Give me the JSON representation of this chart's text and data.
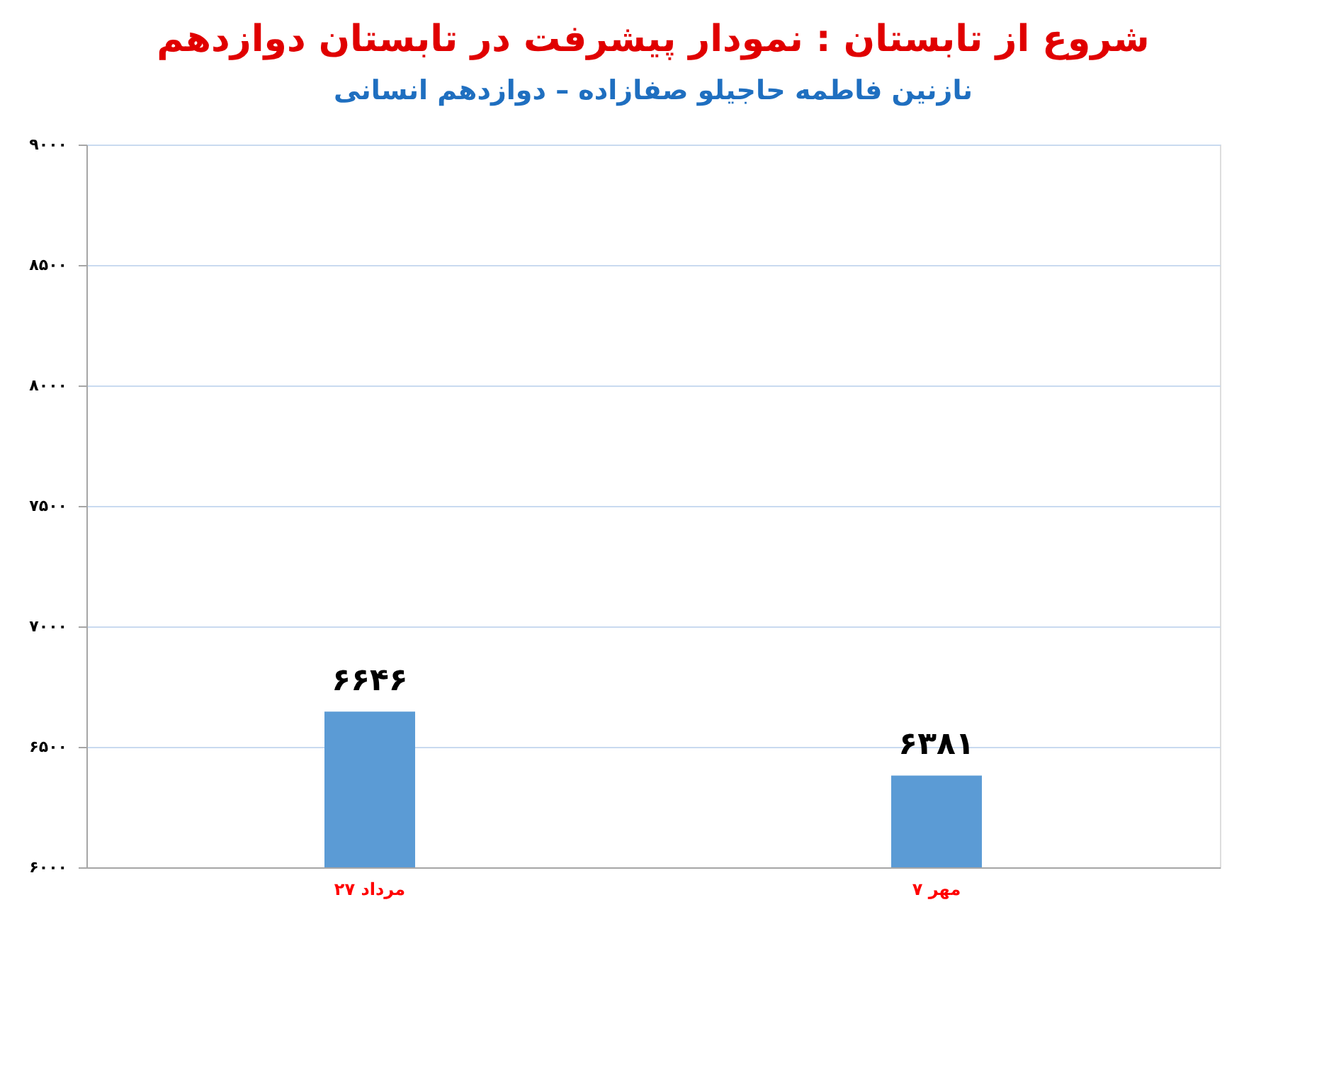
{
  "chart_data": {
    "type": "bar",
    "title": "شروع از تابستان : نمودار پیشرفت در تابستان دوازدهم",
    "subtitle": "نازنین فاطمه حاجیلو صفازاده – دوازدهم انسانی",
    "categories": [
      "۲۷ مرداد",
      "۷ مهر"
    ],
    "values": [
      6646,
      6381
    ],
    "value_labels": [
      "۶۶۴۶",
      "۶۳۸۱"
    ],
    "color": "#5b9bd5",
    "ylim": [
      6000,
      9000
    ],
    "yticks": [
      {
        "value": 6000,
        "label": "۶۰۰۰"
      },
      {
        "value": 6500,
        "label": "۶۵۰۰"
      },
      {
        "value": 7000,
        "label": "۷۰۰۰"
      },
      {
        "value": 7500,
        "label": "۷۵۰۰"
      },
      {
        "value": 8000,
        "label": "۸۰۰۰"
      },
      {
        "value": 8500,
        "label": "۸۵۰۰"
      },
      {
        "value": 9000,
        "label": "۹۰۰۰"
      }
    ],
    "grid": "y"
  }
}
